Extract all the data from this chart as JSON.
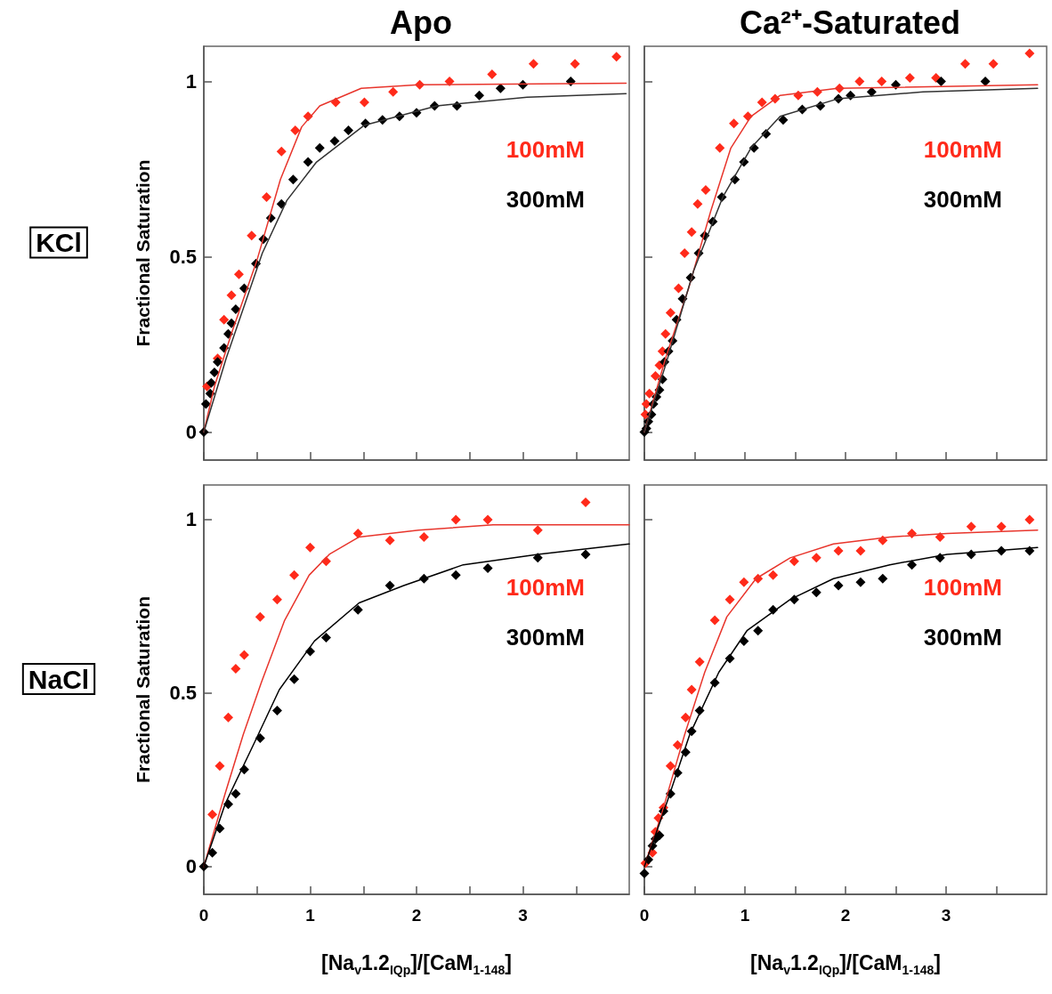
{
  "chart_data": [
    {
      "type": "scatter",
      "title": "Apo",
      "ylabel": "Fractional Saturation",
      "annotations": [
        "KCl"
      ],
      "xlim": [
        0,
        4
      ],
      "ylim": [
        -0.08,
        1.1
      ],
      "xticks": [
        0,
        {
          "value": 0.5,
          "label": null
        },
        1,
        {
          "value": 1.5,
          "label": null
        },
        2,
        {
          "value": 2.5,
          "label": null
        },
        3,
        {
          "value": 3.5,
          "label": null
        }
      ],
      "yticks": [
        0,
        0.5,
        1
      ],
      "tick_labels": "y",
      "grid": false,
      "legend": "right",
      "marker": "diamond",
      "series": [
        {
          "name": "100mM",
          "color": "#ff2a1a",
          "x": [
            0.03,
            0.13,
            0.19,
            0.26,
            0.33,
            0.45,
            0.59,
            0.73,
            0.86,
            0.98,
            1.24,
            1.51,
            1.78,
            2.03,
            2.31,
            2.71,
            3.1,
            3.49,
            3.88
          ],
          "values": [
            0.13,
            0.21,
            0.32,
            0.39,
            0.45,
            0.56,
            0.67,
            0.8,
            0.86,
            0.9,
            0.94,
            0.94,
            0.97,
            0.99,
            1.0,
            1.02,
            1.05,
            1.05,
            1.07
          ]
        },
        {
          "name": "300mM",
          "color": "#000000",
          "x": [
            0,
            0.02,
            0.06,
            0.07,
            0.1,
            0.13,
            0.19,
            0.23,
            0.26,
            0.3,
            0.38,
            0.49,
            0.56,
            0.63,
            0.73,
            0.84,
            0.98,
            1.09,
            1.23,
            1.36,
            1.52,
            1.68,
            1.84,
            2.0,
            2.17,
            2.38,
            2.59,
            2.79,
            3.0,
            3.45
          ],
          "values": [
            0,
            0.08,
            0.11,
            0.14,
            0.17,
            0.2,
            0.24,
            0.28,
            0.31,
            0.35,
            0.41,
            0.48,
            0.55,
            0.61,
            0.65,
            0.72,
            0.77,
            0.81,
            0.83,
            0.86,
            0.88,
            0.89,
            0.9,
            0.91,
            0.93,
            0.93,
            0.96,
            0.98,
            0.99,
            1.0
          ]
        },
        {
          "type": "line",
          "marker": "none",
          "color": "#e8352c",
          "x": [
            0,
            0.1,
            0.27,
            0.5,
            0.72,
            0.92,
            1.09,
            1.48,
            2.02,
            3.97
          ],
          "values": [
            0,
            0.13,
            0.29,
            0.49,
            0.72,
            0.87,
            0.93,
            0.98,
            0.99,
            0.995
          ]
        },
        {
          "type": "line",
          "marker": "none",
          "color": "#333333",
          "x": [
            0,
            0.21,
            0.55,
            0.78,
            1.06,
            1.51,
            2.19,
            3.04,
            3.97
          ],
          "values": [
            0,
            0.21,
            0.51,
            0.66,
            0.77,
            0.875,
            0.93,
            0.955,
            0.965
          ]
        }
      ]
    },
    {
      "type": "scatter",
      "title": "Ca²⁺-Saturated",
      "xlim": [
        0,
        4
      ],
      "ylim": [
        -0.08,
        1.1
      ],
      "xticks": [
        0,
        {
          "value": 0.5,
          "label": null
        },
        1,
        {
          "value": 1.5,
          "label": null
        },
        2,
        {
          "value": 2.5,
          "label": null
        },
        3,
        {
          "value": 3.5,
          "label": null
        }
      ],
      "yticks": [
        0,
        0.5,
        1
      ],
      "tick_labels": false,
      "grid": false,
      "legend": "right",
      "marker": "diamond",
      "series": [
        {
          "name": "100mM",
          "color": "#ff2a1a",
          "x": [
            0.01,
            0.02,
            0.05,
            0.11,
            0.15,
            0.18,
            0.21,
            0.26,
            0.34,
            0.4,
            0.47,
            0.53,
            0.61,
            0.75,
            0.89,
            1.03,
            1.17,
            1.3,
            1.53,
            1.72,
            1.94,
            2.14,
            2.36,
            2.64,
            2.9,
            3.19,
            3.47,
            3.83
          ],
          "values": [
            0.05,
            0.08,
            0.11,
            0.16,
            0.19,
            0.23,
            0.28,
            0.34,
            0.41,
            0.51,
            0.57,
            0.65,
            0.69,
            0.81,
            0.88,
            0.9,
            0.94,
            0.95,
            0.96,
            0.97,
            0.98,
            1.0,
            1.0,
            1.01,
            1.01,
            1.05,
            1.05,
            1.08
          ]
        },
        {
          "name": "300mM",
          "color": "#000000",
          "x": [
            0,
            0.02,
            0.04,
            0.07,
            0.09,
            0.12,
            0.15,
            0.18,
            0.2,
            0.24,
            0.28,
            0.32,
            0.38,
            0.46,
            0.54,
            0.6,
            0.68,
            0.77,
            0.9,
            0.99,
            1.09,
            1.21,
            1.38,
            1.57,
            1.75,
            1.93,
            2.05,
            2.26,
            2.5,
            2.95,
            3.39
          ],
          "values": [
            0,
            0.01,
            0.03,
            0.05,
            0.08,
            0.1,
            0.12,
            0.15,
            0.2,
            0.23,
            0.26,
            0.32,
            0.38,
            0.44,
            0.51,
            0.56,
            0.6,
            0.67,
            0.72,
            0.77,
            0.81,
            0.85,
            0.89,
            0.92,
            0.93,
            0.95,
            0.96,
            0.97,
            0.99,
            1.0,
            1.0
          ]
        },
        {
          "type": "line",
          "marker": "none",
          "color": "#e8352c",
          "x": [
            0,
            0.21,
            0.44,
            0.66,
            0.86,
            1.06,
            1.35,
            1.92,
            3.91
          ],
          "values": [
            0,
            0.21,
            0.41,
            0.63,
            0.81,
            0.9,
            0.96,
            0.98,
            0.99
          ]
        },
        {
          "type": "line",
          "marker": "none",
          "color": "#333333",
          "x": [
            0,
            0.21,
            0.49,
            0.78,
            1.06,
            1.35,
            1.92,
            2.77,
            3.91
          ],
          "values": [
            0,
            0.19,
            0.46,
            0.67,
            0.81,
            0.9,
            0.95,
            0.97,
            0.98
          ]
        }
      ]
    },
    {
      "type": "scatter",
      "ylabel": "Fractional Saturation",
      "xlabel": "[Na$_{v}$1.2$_{IQp}$]/[CaM$_{1-148}$]",
      "annotations": [
        "NaCl"
      ],
      "xlim": [
        0,
        4
      ],
      "ylim": [
        -0.08,
        1.1
      ],
      "xticks": [
        0,
        {
          "value": 0.5,
          "label": null
        },
        1,
        {
          "value": 1.5,
          "label": null
        },
        2,
        {
          "value": 2.5,
          "label": null
        },
        3,
        {
          "value": 3.5,
          "label": null
        }
      ],
      "yticks": [
        0,
        0.5,
        1
      ],
      "grid": false,
      "legend": "right",
      "marker": "diamond",
      "series": [
        {
          "name": "100mM",
          "color": "#ff2a1a",
          "x": [
            0.08,
            0.15,
            0.23,
            0.3,
            0.38,
            0.53,
            0.69,
            0.85,
            1.0,
            1.15,
            1.45,
            1.75,
            2.07,
            2.37,
            2.67,
            3.14,
            3.59
          ],
          "values": [
            0.15,
            0.29,
            0.43,
            0.57,
            0.61,
            0.72,
            0.77,
            0.84,
            0.92,
            0.88,
            0.96,
            0.94,
            0.95,
            1.0,
            1.0,
            0.97,
            1.05
          ]
        },
        {
          "name": "300mM",
          "color": "#000000",
          "x": [
            0,
            0.08,
            0.15,
            0.23,
            0.3,
            0.38,
            0.53,
            0.69,
            0.85,
            1.0,
            1.15,
            1.45,
            1.75,
            2.07,
            2.37,
            2.67,
            3.14,
            3.59
          ],
          "values": [
            0,
            0.04,
            0.11,
            0.18,
            0.21,
            0.28,
            0.37,
            0.45,
            0.54,
            0.62,
            0.66,
            0.74,
            0.81,
            0.83,
            0.84,
            0.86,
            0.89,
            0.9
          ]
        },
        {
          "type": "line",
          "marker": "none",
          "color": "#e8352c",
          "x": [
            0,
            0.2,
            0.37,
            0.54,
            0.76,
            0.99,
            1.18,
            1.46,
            2.02,
            2.72,
            4.0
          ],
          "values": [
            0,
            0.21,
            0.38,
            0.53,
            0.71,
            0.84,
            0.9,
            0.95,
            0.97,
            0.985,
            0.985
          ]
        },
        {
          "type": "line",
          "marker": "none",
          "color": "#000000",
          "x": [
            0,
            0.2,
            0.48,
            0.71,
            1.04,
            1.46,
            1.88,
            2.44,
            3.14,
            4.0
          ],
          "values": [
            0,
            0.18,
            0.36,
            0.51,
            0.65,
            0.76,
            0.81,
            0.87,
            0.9,
            0.93
          ]
        }
      ]
    },
    {
      "type": "scatter",
      "xlabel": "[Na$_{v}$1.2$_{IQp}$]/[CaM$_{1-148}$]",
      "xlim": [
        0,
        4
      ],
      "ylim": [
        -0.08,
        1.1
      ],
      "xticks": [
        0,
        {
          "value": 0.5,
          "label": null
        },
        1,
        {
          "value": 1.5,
          "label": null
        },
        2,
        {
          "value": 2.5,
          "label": null
        },
        3,
        {
          "value": 3.5,
          "label": null
        }
      ],
      "yticks": [
        0,
        0.5,
        1
      ],
      "tick_labels": "x",
      "grid": false,
      "legend": "right",
      "marker": "diamond",
      "series": [
        {
          "name": "100mM",
          "color": "#ff2a1a",
          "x": [
            0.01,
            0.08,
            0.11,
            0.14,
            0.19,
            0.26,
            0.33,
            0.41,
            0.47,
            0.55,
            0.7,
            0.85,
            0.99,
            1.13,
            1.28,
            1.49,
            1.71,
            1.93,
            2.15,
            2.37,
            2.66,
            2.94,
            3.25,
            3.55,
            3.83
          ],
          "values": [
            0.01,
            0.04,
            0.1,
            0.14,
            0.17,
            0.29,
            0.35,
            0.43,
            0.51,
            0.59,
            0.71,
            0.77,
            0.82,
            0.83,
            0.84,
            0.88,
            0.89,
            0.91,
            0.91,
            0.94,
            0.96,
            0.95,
            0.98,
            0.98,
            1.0
          ]
        },
        {
          "name": "300mM",
          "color": "#000000",
          "x": [
            0.0,
            0.04,
            0.08,
            0.11,
            0.15,
            0.19,
            0.26,
            0.33,
            0.41,
            0.47,
            0.55,
            0.7,
            0.85,
            0.99,
            1.13,
            1.28,
            1.49,
            1.71,
            1.93,
            2.15,
            2.37,
            2.66,
            2.94,
            3.25,
            3.55,
            3.83
          ],
          "values": [
            -0.02,
            0.02,
            0.06,
            0.08,
            0.09,
            0.16,
            0.21,
            0.27,
            0.33,
            0.39,
            0.45,
            0.53,
            0.6,
            0.65,
            0.68,
            0.74,
            0.77,
            0.79,
            0.81,
            0.82,
            0.83,
            0.87,
            0.89,
            0.9,
            0.91,
            0.91
          ]
        },
        {
          "type": "line",
          "marker": "none",
          "color": "#e8352c",
          "x": [
            0,
            0.17,
            0.4,
            0.6,
            0.82,
            1.11,
            1.45,
            1.88,
            2.44,
            3.01,
            3.91
          ],
          "values": [
            0,
            0.15,
            0.38,
            0.56,
            0.72,
            0.83,
            0.89,
            0.93,
            0.95,
            0.96,
            0.97
          ]
        },
        {
          "type": "line",
          "marker": "none",
          "color": "#000000",
          "x": [
            0,
            0.23,
            0.45,
            0.74,
            1.02,
            1.45,
            1.88,
            2.44,
            3.01,
            3.91
          ],
          "values": [
            0,
            0.19,
            0.38,
            0.56,
            0.68,
            0.77,
            0.83,
            0.87,
            0.9,
            0.92
          ]
        }
      ]
    }
  ]
}
